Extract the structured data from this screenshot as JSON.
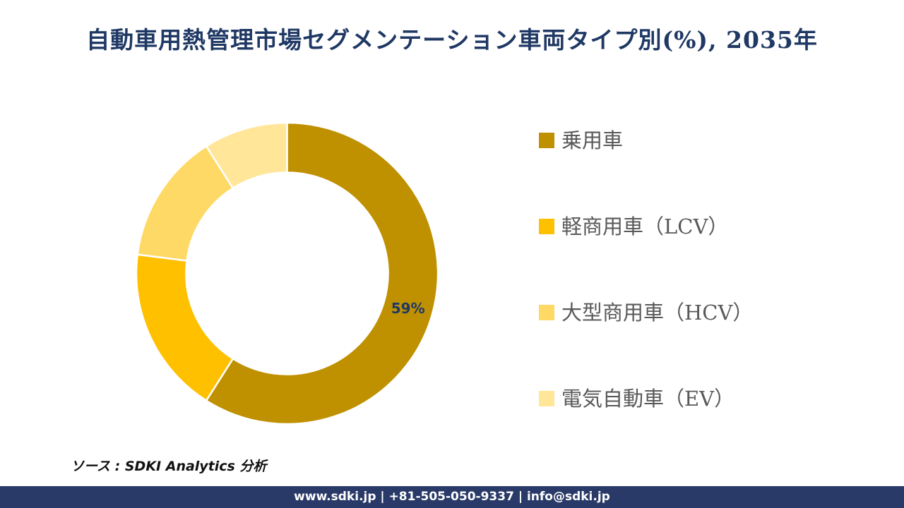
{
  "title": "自動車用熱管理市場セグメンテーション車両タイプ別(%), 2035年",
  "colors": {
    "title_text": "#1F3864",
    "legend_text": "#595959",
    "data_label_text": "#1F3864",
    "footer_bar_bg": "#2A3A68",
    "footer_text": "#FFFFFF",
    "slice_divider": "#FFFFFF"
  },
  "chart_data": {
    "type": "pie",
    "subtype": "donut",
    "title": "自動車用熱管理市場セグメンテーション車両タイプ別(%), 2035年",
    "labels": [
      "乗用車",
      "軽商用車（LCV）",
      "大型商用車（HCV）",
      "電気自動車（EV）"
    ],
    "values": [
      59,
      18,
      14,
      9
    ],
    "colors": [
      "#BF9000",
      "#FFC000",
      "#FFD966",
      "#FFE699"
    ],
    "data_labels": [
      "59%",
      "",
      "",
      ""
    ],
    "start_angle_deg": 0,
    "direction": "clockwise",
    "hole_ratio": 0.67,
    "legend_position": "right"
  },
  "legend": {
    "items": [
      {
        "label": "乗用車",
        "color": "#BF9000"
      },
      {
        "label": "軽商用車（LCV）",
        "color": "#FFC000"
      },
      {
        "label": "大型商用車（HCV）",
        "color": "#FFD966"
      },
      {
        "label": "電気自動車（EV）",
        "color": "#FFE699"
      }
    ]
  },
  "source_note": "ソース : SDKI Analytics 分析",
  "footer": {
    "text": "www.sdki.jp | +81-505-050-9337 | info@sdki.jp"
  }
}
